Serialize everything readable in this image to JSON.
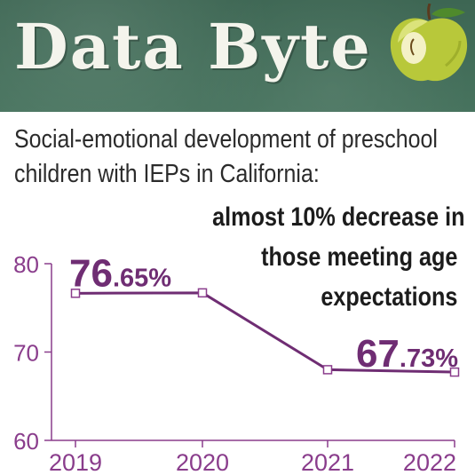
{
  "banner": {
    "title": "Data Byte"
  },
  "subtitle": "Social-emotional development of preschool children with IEPs in California:",
  "headline": [
    "almost 10% decrease in",
    "those meeting age",
    "expectations"
  ],
  "chart_data": {
    "type": "line",
    "categories": [
      "2019",
      "2020",
      "2021",
      "2022"
    ],
    "values": [
      76.65,
      76.7,
      68.0,
      67.73
    ],
    "ylim": [
      60,
      80
    ],
    "yticks": [
      "80",
      "70",
      "60"
    ],
    "annotations": [
      {
        "index": 0,
        "big": "76",
        "small": ".65%"
      },
      {
        "index": 3,
        "big": "67",
        "small": ".73%"
      }
    ],
    "colors": {
      "line": "#6f2d73",
      "axis": "#8a3d8c",
      "marker_fill": "#ffffff"
    }
  }
}
